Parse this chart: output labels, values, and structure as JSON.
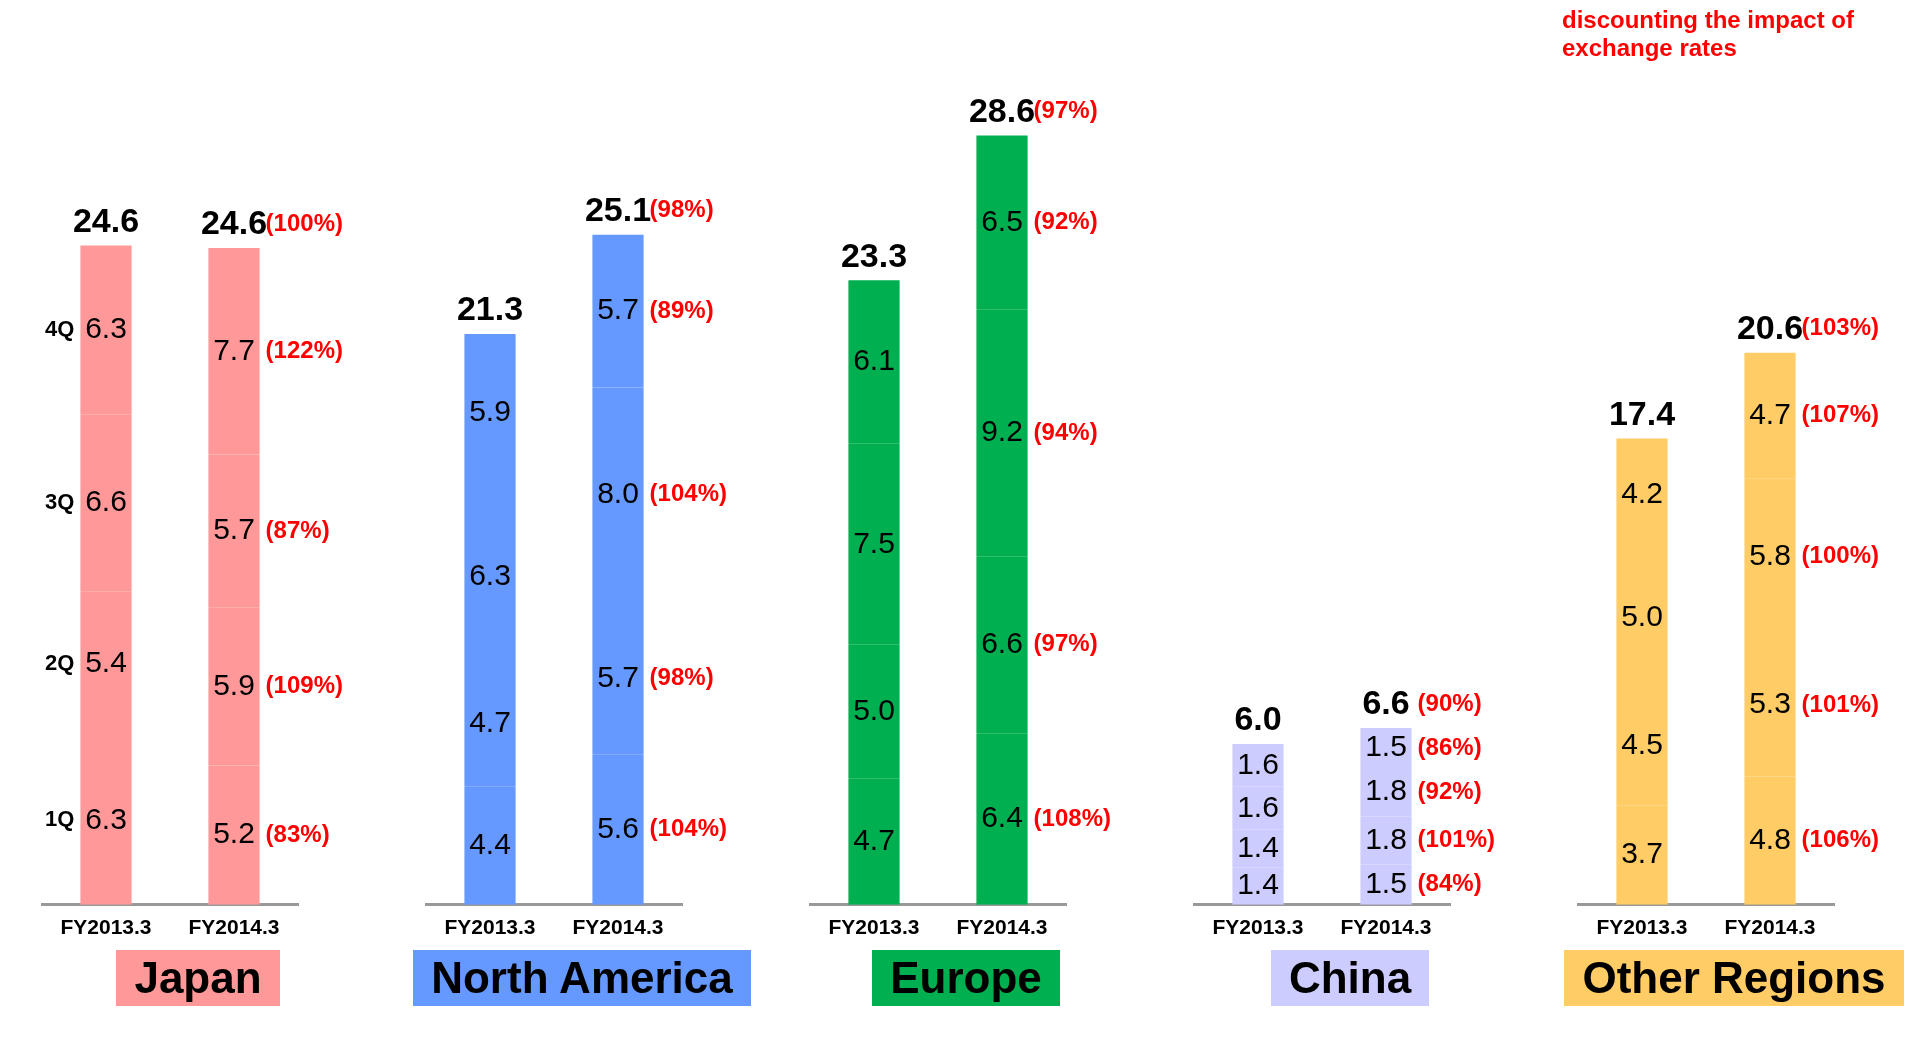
{
  "chart_data": [
    {
      "type": "bar",
      "title": "Japan",
      "categories": [
        "FY2013.3",
        "FY2014.3"
      ],
      "stacked": true,
      "data_labels": true,
      "totals": [
        "24.6",
        "24.6"
      ],
      "series": [
        {
          "name": "1Q",
          "color": "#ff9999",
          "values": [
            6.3,
            5.2
          ]
        },
        {
          "name": "2Q",
          "color": "#ff9999",
          "values": [
            5.4,
            5.9
          ]
        },
        {
          "name": "3Q",
          "color": "#ff9999",
          "values": [
            6.6,
            5.7
          ]
        },
        {
          "name": "4Q",
          "color": "#ff9999",
          "values": [
            6.3,
            7.7
          ]
        }
      ],
      "annotations": [
        "(83%)",
        "(109%)",
        "(87%)",
        "(122%)",
        "(100%)"
      ]
    },
    {
      "type": "bar",
      "title": "North America",
      "categories": [
        "FY2013.3",
        "FY2014.3"
      ],
      "stacked": true,
      "data_labels": true,
      "totals": [
        "21.3",
        "25.1"
      ],
      "series": [
        {
          "color": "#6699ff",
          "values": [
            4.4,
            5.6
          ]
        },
        {
          "color": "#6699ff",
          "values": [
            4.7,
            5.7
          ]
        },
        {
          "color": "#6699ff",
          "values": [
            6.3,
            8.0
          ],
          "value_labels": [
            "6.3",
            "8.0"
          ]
        },
        {
          "color": "#6699ff",
          "values": [
            5.9,
            5.7
          ]
        }
      ],
      "annotations": [
        "(104%)",
        "(98%)",
        "(104%)",
        "(89%)",
        "(98%)"
      ]
    },
    {
      "type": "bar",
      "title": "Europe",
      "categories": [
        "FY2013.3",
        "FY2014.3"
      ],
      "stacked": true,
      "data_labels": true,
      "totals": [
        "23.3",
        "28.6"
      ],
      "series": [
        {
          "color": "#00b050",
          "values": [
            4.7,
            6.4
          ]
        },
        {
          "color": "#00b050",
          "values": [
            5.0,
            6.6
          ],
          "value_labels": [
            "5.0",
            "6.6"
          ]
        },
        {
          "color": "#00b050",
          "values": [
            7.5,
            9.2
          ]
        },
        {
          "color": "#00b050",
          "values": [
            6.1,
            6.5
          ]
        }
      ],
      "annotations": [
        "(108%)",
        "(97%)",
        "(94%)",
        "(92%)",
        "(97%)"
      ]
    },
    {
      "type": "bar",
      "title": "China",
      "categories": [
        "FY2013.3",
        "FY2014.3"
      ],
      "stacked": true,
      "data_labels": true,
      "totals": [
        "6.0",
        "6.6"
      ],
      "series": [
        {
          "color": "#ccccff",
          "values": [
            1.4,
            1.5
          ]
        },
        {
          "color": "#ccccff",
          "values": [
            1.4,
            1.8
          ]
        },
        {
          "color": "#ccccff",
          "values": [
            1.6,
            1.8
          ]
        },
        {
          "color": "#ccccff",
          "values": [
            1.6,
            1.5
          ]
        }
      ],
      "annotations": [
        "(84%)",
        "(101%)",
        "(92%)",
        "(86%)",
        "(90%)"
      ]
    },
    {
      "type": "bar",
      "title": "Other Regions",
      "subtitle": "discounting the impact of exchange rates",
      "categories": [
        "FY2013.3",
        "FY2014.3"
      ],
      "stacked": true,
      "data_labels": true,
      "totals": [
        "17.4",
        "20.6"
      ],
      "series": [
        {
          "color": "#ffcc66",
          "values": [
            3.7,
            4.8
          ]
        },
        {
          "color": "#ffcc66",
          "values": [
            4.5,
            5.3
          ]
        },
        {
          "color": "#ffcc66",
          "values": [
            5.0,
            5.8
          ],
          "value_labels": [
            "5.0",
            "5.8"
          ]
        },
        {
          "color": "#ffcc66",
          "values": [
            4.2,
            4.7
          ]
        }
      ],
      "annotations": [
        "(106%)",
        "(101%)",
        "(100%)",
        "(107%)",
        "(103%)"
      ]
    }
  ]
}
